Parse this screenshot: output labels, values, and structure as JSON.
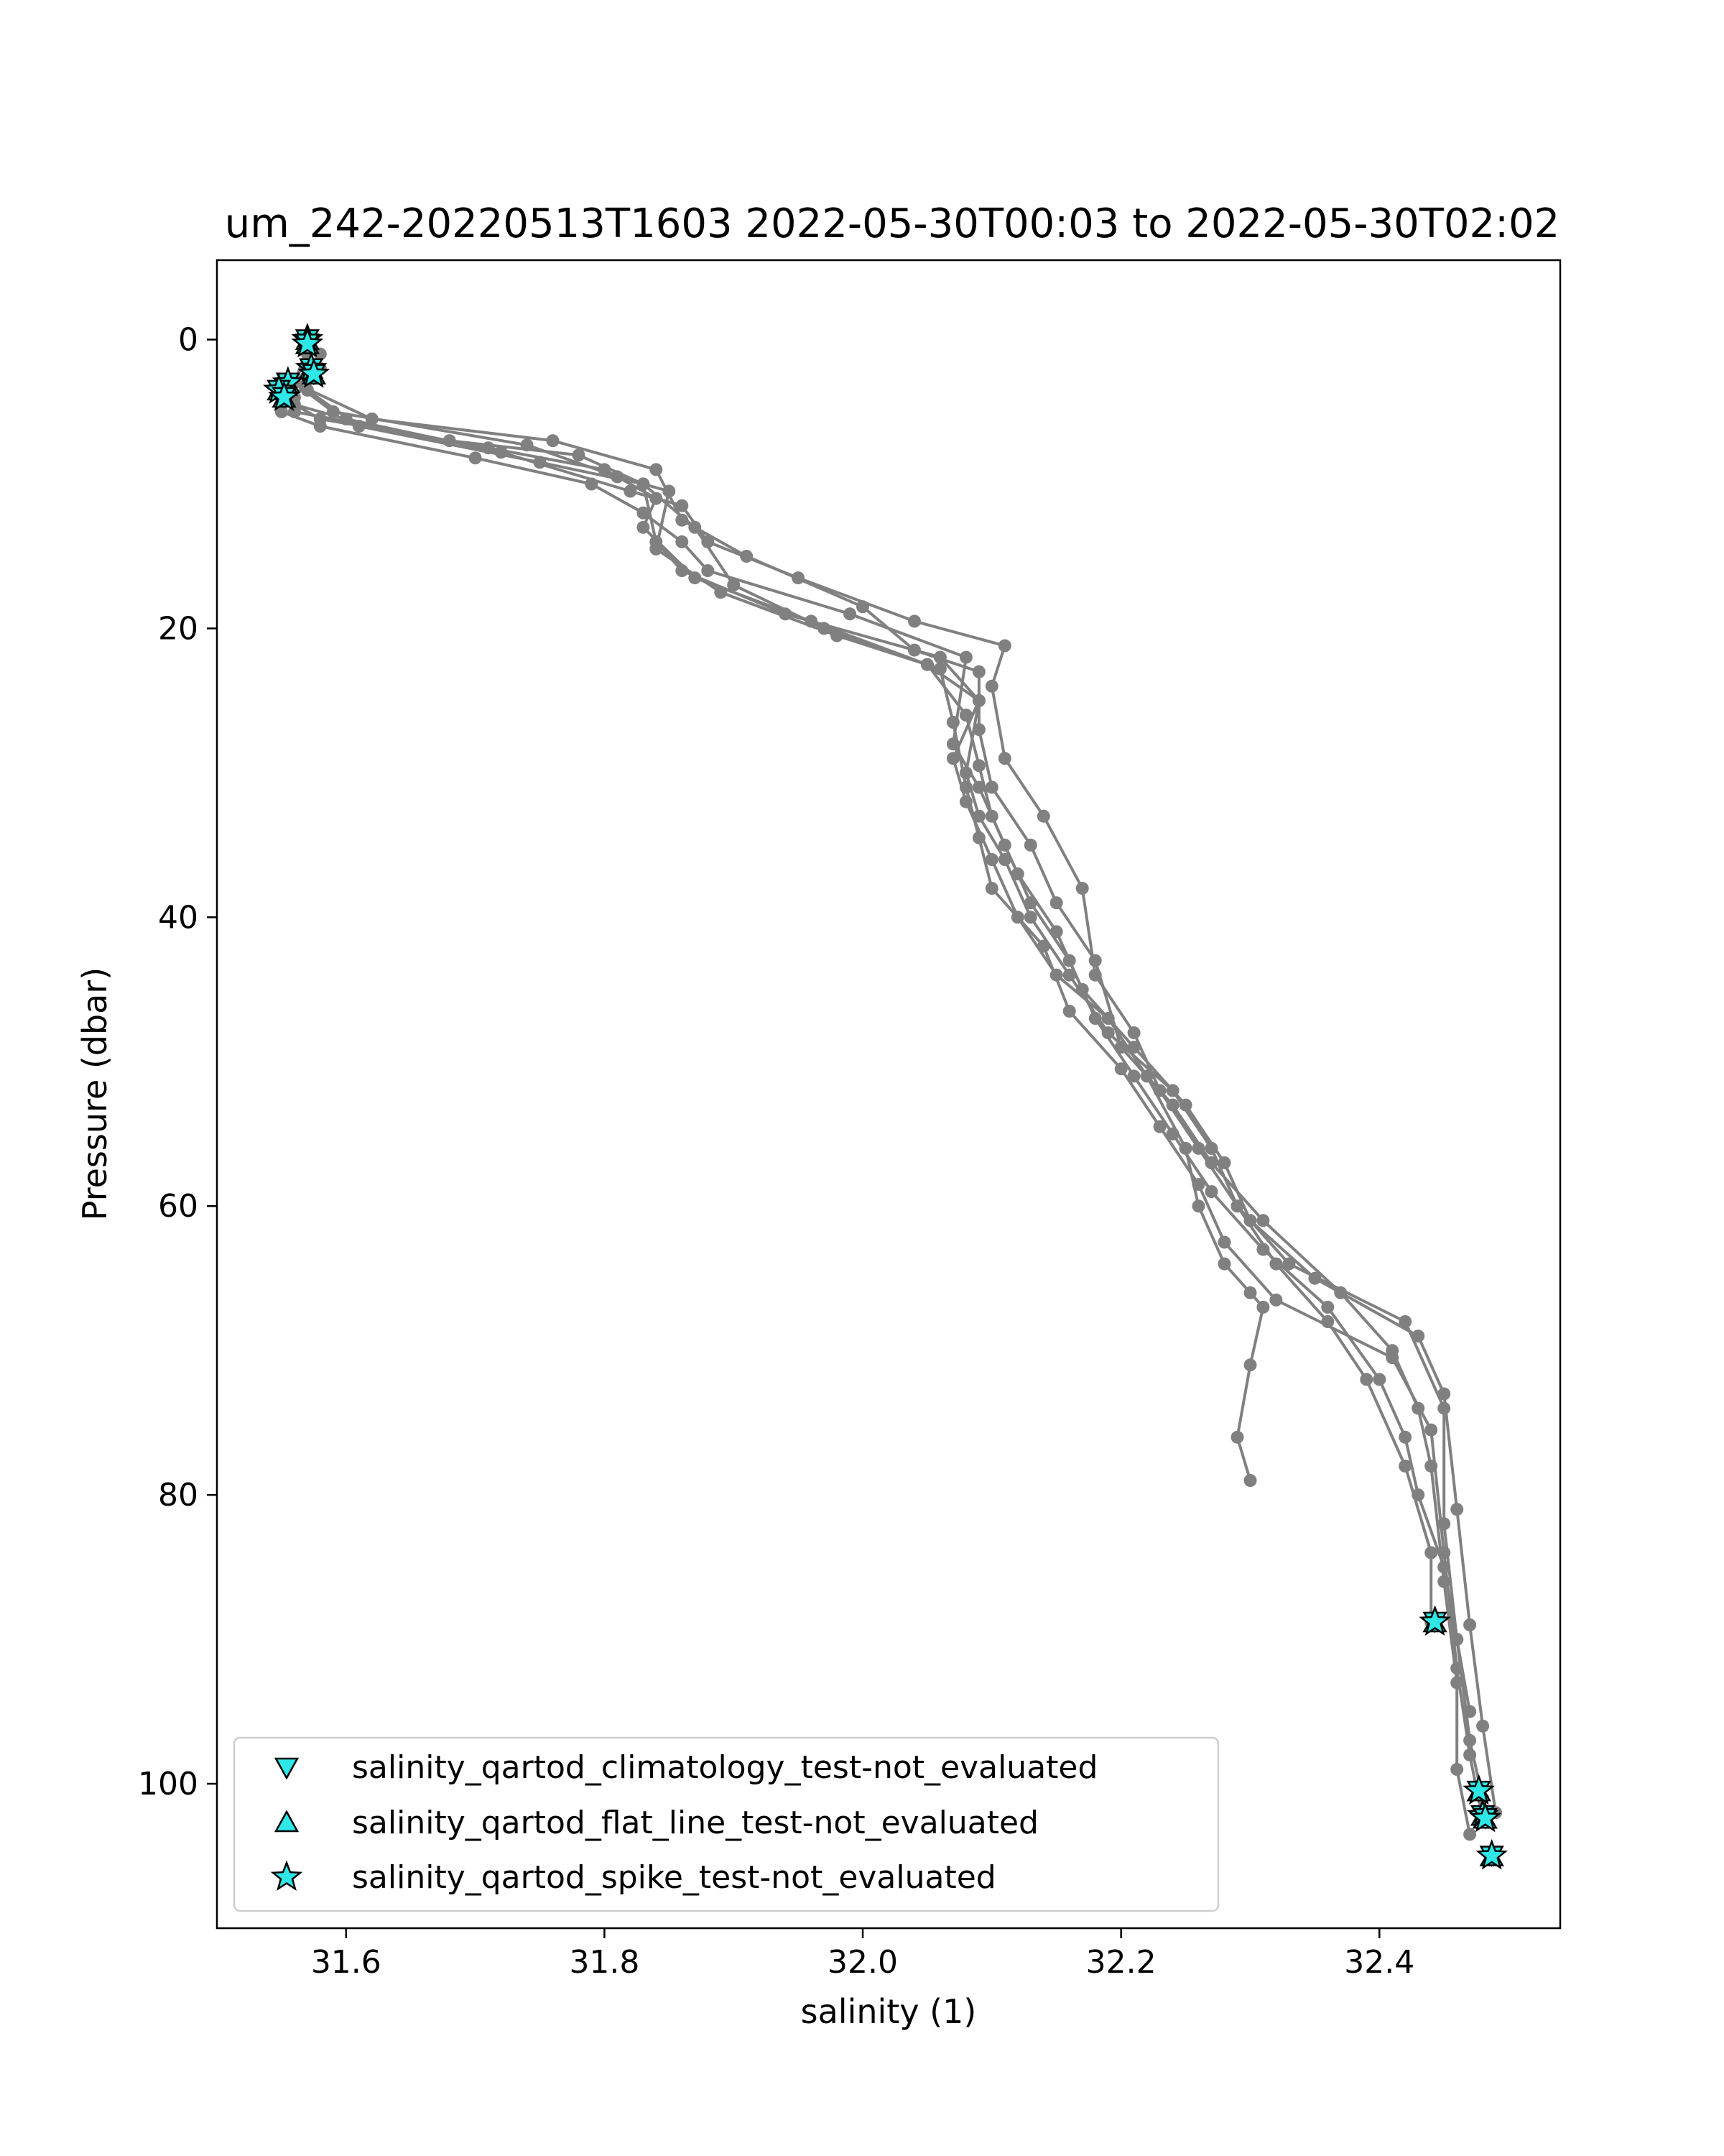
{
  "chart_data": {
    "type": "line",
    "title": "um_242-20220513T1603 2022-05-30T00:03 to 2022-05-30T02:02",
    "xlabel": "salinity (1)",
    "ylabel": "Pressure (dbar)",
    "xlim": [
      31.5,
      32.54
    ],
    "ylim": [
      110,
      -5.5
    ],
    "y_inverted": true,
    "grid": false,
    "line_color": "#808080",
    "flag_color": "#2ee8e8",
    "xticks": [
      "31.6",
      "31.8",
      "32.0",
      "32.2",
      "32.4"
    ],
    "yticks": [
      "0",
      "20",
      "40",
      "60",
      "80",
      "100"
    ],
    "series": [
      {
        "x": [
          31.58,
          31.56,
          31.56,
          31.68,
          31.78,
          31.83,
          31.84,
          31.86,
          31.94,
          32.06,
          32.09,
          32.08,
          32.09,
          32.11,
          32.13,
          32.16,
          32.19,
          32.24,
          32.27,
          32.29,
          32.33,
          32.42,
          32.45,
          32.45,
          32.46,
          32.47,
          32.48
        ],
        "y": [
          2,
          4,
          5,
          7,
          8,
          10,
          14,
          16,
          19,
          22,
          25,
          30,
          33,
          36,
          40,
          44,
          48,
          52,
          56,
          60,
          64,
          68,
          74,
          82,
          90,
          97,
          101
        ]
      },
      {
        "x": [
          31.57,
          31.55,
          31.58,
          31.71,
          31.8,
          31.84,
          31.83,
          31.87,
          31.96,
          32.05,
          32.08,
          32.09,
          32.1,
          32.12,
          32.15,
          32.17,
          32.21,
          32.25,
          32.28,
          32.3,
          32.35,
          32.43,
          32.45,
          32.46,
          32.47,
          32.48,
          32.49
        ],
        "y": [
          2,
          4,
          5.5,
          7.5,
          9,
          11,
          13,
          16.5,
          19.5,
          22.5,
          26,
          29.5,
          33,
          37,
          41,
          45,
          49,
          53,
          57,
          61,
          65,
          69,
          73,
          81,
          89,
          96,
          102
        ]
      },
      {
        "x": [
          31.57,
          31.56,
          31.59,
          31.74,
          31.81,
          31.85,
          31.84,
          31.89,
          31.98,
          32.06,
          32.07,
          32.08,
          32.09,
          32.1,
          32.14,
          32.16,
          32.2,
          32.23,
          32.26,
          32.28,
          32.32,
          32.41,
          32.44,
          32.45,
          32.46,
          32.47,
          32.48
        ],
        "y": [
          1,
          3,
          5,
          7.3,
          9.5,
          10.5,
          14.5,
          17.5,
          20.5,
          22.8,
          26.5,
          31,
          34.5,
          38,
          42,
          46.5,
          50.5,
          54.5,
          58.5,
          62.5,
          66.5,
          70.5,
          75.5,
          84,
          92,
          98,
          102.5
        ]
      },
      {
        "x": [
          31.56,
          31.55,
          31.58,
          31.7,
          31.79,
          31.83,
          31.86,
          31.88,
          31.99,
          32.08,
          32.07,
          32.09,
          32.11,
          32.13,
          32.16,
          32.18,
          32.21,
          32.24,
          32.27,
          32.31,
          32.36,
          32.4,
          32.42,
          32.43,
          32.45,
          32.46,
          32.47
        ],
        "y": [
          3,
          5,
          6,
          8.2,
          10,
          12,
          14,
          16,
          19,
          22,
          28,
          31,
          35,
          39,
          43,
          47,
          51,
          55,
          59,
          63,
          67,
          72,
          76,
          80,
          85,
          90,
          95
        ]
      },
      {
        "x": [
          31.57,
          31.56,
          31.6,
          31.72,
          31.82,
          31.86,
          31.88,
          31.95,
          32.04,
          32.11,
          32.1,
          32.11,
          32.14,
          32.17,
          32.18,
          32.21,
          32.23,
          32.26,
          32.29,
          32.32,
          32.36,
          32.39,
          32.42,
          32.44,
          32.44
        ],
        "y": [
          2,
          4.5,
          5.5,
          7.8,
          10.5,
          11.5,
          14,
          16.5,
          19.5,
          21.2,
          24,
          29,
          33,
          38,
          44,
          48,
          52,
          56,
          60,
          64,
          68,
          72,
          78,
          84,
          88.8
        ]
      },
      {
        "x": [
          31.58,
          31.57,
          31.61,
          31.75,
          31.83,
          31.87,
          31.9,
          31.97,
          32.05,
          32.09,
          32.07,
          32.08,
          32.1,
          32.12,
          32.15,
          32.19,
          32.22,
          32.25,
          32.26,
          32.28,
          32.3,
          32.31,
          32.3,
          32.29,
          32.3
        ],
        "y": [
          1,
          3.5,
          6,
          8.5,
          10,
          13,
          17,
          20,
          22.5,
          25,
          29,
          32,
          36,
          40,
          44,
          47,
          51,
          56,
          60,
          64,
          66,
          67,
          71,
          76,
          79
        ]
      },
      {
        "x": [
          31.57,
          31.56,
          31.62,
          31.76,
          31.84,
          31.86,
          31.91,
          32.0,
          32.04,
          32.09,
          32.09,
          32.1,
          32.13,
          32.15,
          32.18,
          32.2,
          32.24,
          32.27,
          32.31,
          32.37,
          32.41,
          32.43,
          32.44,
          32.45,
          32.46,
          32.46,
          32.47
        ],
        "y": [
          0.5,
          3,
          5.5,
          7,
          9,
          12.5,
          15,
          18.5,
          21.5,
          23,
          27,
          31,
          35,
          39,
          43,
          49,
          53,
          57,
          61,
          66,
          70,
          74,
          78,
          86,
          93,
          99,
          103.5
        ]
      }
    ],
    "legend": {
      "placement": "lower left",
      "entries": [
        {
          "label": "salinity_qartod_climatology_test-not_evaluated",
          "marker": "triangle-down-icon"
        },
        {
          "label": "salinity_qartod_flat_line_test-not_evaluated",
          "marker": "triangle-up-icon"
        },
        {
          "label": "salinity_qartod_spike_test-not_evaluated",
          "marker": "star-icon"
        }
      ]
    },
    "flagged_points": [
      {
        "x": 31.57,
        "y": 0
      },
      {
        "x": 31.57,
        "y": 0.3
      },
      {
        "x": 31.573,
        "y": 2
      },
      {
        "x": 31.575,
        "y": 2.4
      },
      {
        "x": 31.555,
        "y": 3
      },
      {
        "x": 31.548,
        "y": 3.5
      },
      {
        "x": 31.552,
        "y": 4
      },
      {
        "x": 32.443,
        "y": 88.8
      },
      {
        "x": 32.477,
        "y": 100.5
      },
      {
        "x": 32.48,
        "y": 102.2
      },
      {
        "x": 32.482,
        "y": 102.4
      },
      {
        "x": 32.487,
        "y": 105
      }
    ]
  }
}
